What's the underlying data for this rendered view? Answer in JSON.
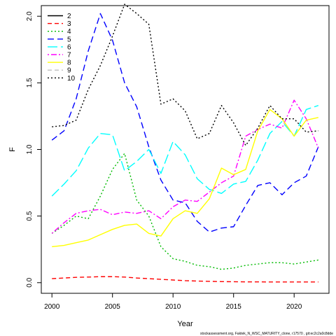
{
  "chart_data": {
    "type": "line",
    "xlabel": "Year",
    "ylabel": "F",
    "xlim": [
      2000,
      2022
    ],
    "ylim": [
      0.0,
      2.0
    ],
    "x_ticks": [
      2000,
      2005,
      2010,
      2015,
      2020
    ],
    "y_ticks": [
      0.0,
      0.5,
      1.0,
      1.5,
      2.0
    ],
    "y_tick_labels": [
      "0.0",
      "0.5",
      "1.0",
      "1.5",
      "2.0"
    ],
    "legend_position": "top-left",
    "x": [
      2000,
      2001,
      2002,
      2003,
      2004,
      2005,
      2006,
      2007,
      2008,
      2009,
      2010,
      2011,
      2012,
      2013,
      2014,
      2015,
      2016,
      2017,
      2018,
      2019,
      2020,
      2021,
      2022
    ],
    "series": [
      {
        "name": "2",
        "color": "#000000",
        "dash": "solid",
        "values": [
          null,
          null,
          null,
          null,
          null,
          null,
          null,
          null,
          null,
          null,
          null,
          null,
          null,
          null,
          null,
          null,
          null,
          null,
          null,
          null,
          null,
          null,
          null
        ]
      },
      {
        "name": "3",
        "color": "#ff0000",
        "dash": "dashed",
        "values": [
          0.03,
          0.035,
          0.04,
          0.042,
          0.045,
          0.045,
          0.042,
          0.035,
          0.03,
          0.025,
          0.02,
          0.015,
          0.012,
          0.01,
          0.008,
          0.007,
          0.006,
          0.006,
          0.005,
          0.005,
          0.005,
          0.005,
          0.005
        ]
      },
      {
        "name": "4",
        "color": "#00bb00",
        "dash": "dotted",
        "values": [
          0.37,
          0.43,
          0.5,
          0.48,
          0.65,
          0.85,
          0.97,
          0.62,
          0.5,
          0.27,
          0.18,
          0.16,
          0.13,
          0.12,
          0.1,
          0.11,
          0.13,
          0.14,
          0.15,
          0.15,
          0.14,
          0.155,
          0.17
        ]
      },
      {
        "name": "5",
        "color": "#0000ff",
        "dash": "dash",
        "values": [
          1.07,
          1.14,
          1.38,
          1.74,
          2.02,
          1.82,
          1.5,
          1.32,
          1.02,
          0.77,
          0.62,
          0.6,
          0.46,
          0.38,
          0.41,
          0.42,
          0.58,
          0.73,
          0.75,
          0.66,
          0.75,
          0.8,
          1.02
        ]
      },
      {
        "name": "6",
        "color": "#00ffff",
        "dash": "longdash",
        "values": [
          0.65,
          0.74,
          0.84,
          1.01,
          1.12,
          1.11,
          0.84,
          0.91,
          1.0,
          0.82,
          1.06,
          0.96,
          0.78,
          0.7,
          0.67,
          0.74,
          0.76,
          0.92,
          1.12,
          1.21,
          1.1,
          1.3,
          1.33
        ]
      },
      {
        "name": "7",
        "color": "#ff00ff",
        "dash": "dotdash",
        "values": [
          0.37,
          0.45,
          0.52,
          0.54,
          0.55,
          0.51,
          0.53,
          0.52,
          0.54,
          0.48,
          0.57,
          0.62,
          0.61,
          0.68,
          0.75,
          0.8,
          1.1,
          1.15,
          1.19,
          1.16,
          1.37,
          1.23,
          1.01
        ]
      },
      {
        "name": "8",
        "color": "#ffff00",
        "dash": "solid",
        "values": [
          0.27,
          0.28,
          0.3,
          0.32,
          0.36,
          0.4,
          0.43,
          0.44,
          0.37,
          0.35,
          0.48,
          0.54,
          0.52,
          0.63,
          0.86,
          0.81,
          0.85,
          1.14,
          1.3,
          1.23,
          1.1,
          1.22,
          1.24
        ]
      },
      {
        "name": "9",
        "color": "#bebebe",
        "dash": "dashed",
        "values": [
          null,
          null,
          null,
          null,
          null,
          null,
          null,
          null,
          null,
          null,
          null,
          null,
          null,
          null,
          null,
          null,
          null,
          null,
          null,
          null,
          null,
          null,
          null
        ]
      },
      {
        "name": "10",
        "color": "#000000",
        "dash": "dotted",
        "values": [
          1.17,
          1.18,
          1.22,
          1.45,
          1.63,
          1.85,
          2.09,
          2.02,
          1.94,
          1.34,
          1.38,
          1.29,
          1.08,
          1.12,
          1.33,
          1.2,
          1.03,
          1.16,
          1.33,
          1.23,
          1.23,
          1.13,
          1.14
        ]
      }
    ]
  },
  "footer": {
    "credit": "stockassessment.org, Faktek_N_WSC_MATURITY_clone, r17570 , git:ec2c2a0c8dde"
  }
}
